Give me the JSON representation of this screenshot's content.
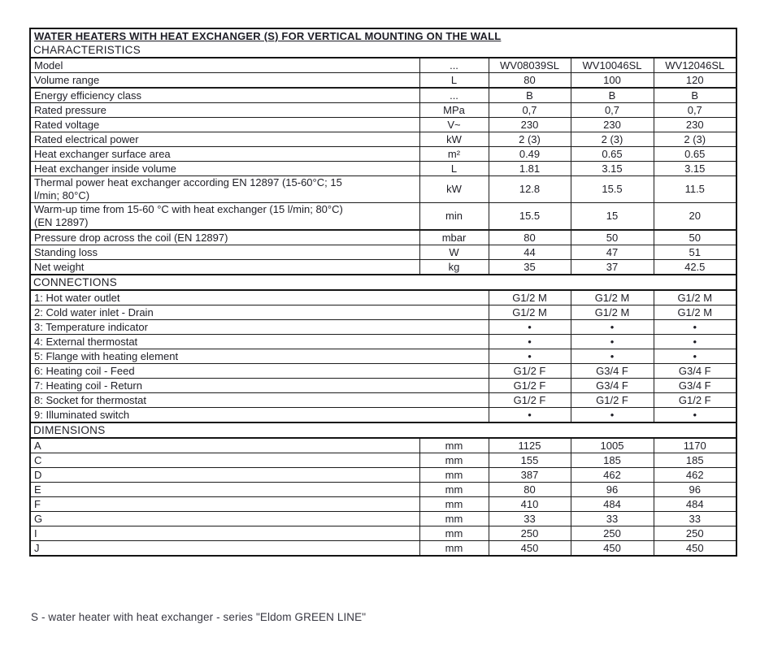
{
  "title": "WATER HEATERS WITH HEAT EXCHANGER (S) FOR VERTICAL MOUNTING ON THE WALL",
  "footer_note": "S - water heater with heat exchanger - series \"Eldom GREEN LINE\"",
  "colors": {
    "border": "#141414",
    "text": "#1e1e26",
    "background": "#ffffff"
  },
  "table": {
    "models": [
      "WV08039SL",
      "WV10046SL",
      "WV12046SL"
    ],
    "sections": [
      {
        "header": "CHARACTERISTICS",
        "rows": [
          {
            "label": "Model",
            "unit": "...",
            "values": [
              "WV08039SL",
              "WV10046SL",
              "WV12046SL"
            ]
          },
          {
            "label": "Volume range",
            "unit": "L",
            "values": [
              "80",
              "100",
              "120"
            ],
            "thick_bottom": true
          },
          {
            "label": "Energy efficiency class",
            "unit": "...",
            "values": [
              "B",
              "B",
              "B"
            ]
          },
          {
            "label": "Rated pressure",
            "unit": "MPa",
            "values": [
              "0,7",
              "0,7",
              "0,7"
            ]
          },
          {
            "label": "Rated voltage",
            "unit": "V~",
            "values": [
              "230",
              "230",
              "230"
            ]
          },
          {
            "label": "Rated electrical power",
            "unit": "kW",
            "values": [
              "2 (3)",
              "2 (3)",
              "2 (3)"
            ]
          },
          {
            "label": "Heat exchanger surface area",
            "unit": "m²",
            "values": [
              "0.49",
              "0.65",
              "0.65"
            ]
          },
          {
            "label": "Heat exchanger inside volume",
            "unit": "L",
            "values": [
              "1.81",
              "3.15",
              "3.15"
            ]
          },
          {
            "label": "Thermal power heat exchanger according EN 12897 (15-60°C; 15\nl/min; 80°C)",
            "unit": "kW",
            "values": [
              "12.8",
              "15.5",
              "11.5"
            ]
          },
          {
            "label": "Warm-up time from 15-60 °C with heat exchanger (15 l/min; 80°C)\n(EN 12897)",
            "unit": "min",
            "values": [
              "15.5",
              "15",
              "20"
            ],
            "thick_bottom": true
          },
          {
            "label": "Pressure drop across the coil (EN 12897)",
            "unit": "mbar",
            "values": [
              "80",
              "50",
              "50"
            ]
          },
          {
            "label": "Standing loss",
            "unit": "W",
            "values": [
              "44",
              "47",
              "51"
            ]
          },
          {
            "label": "Net weight",
            "unit": "kg",
            "values": [
              "35",
              "37",
              "42.5"
            ]
          }
        ]
      },
      {
        "header": "CONNECTIONS",
        "rows": [
          {
            "label": "1: Hot water outlet",
            "unit": null,
            "values": [
              "G1/2 M",
              "G1/2 M",
              "G1/2 M"
            ]
          },
          {
            "label": "2: Cold water inlet - Drain",
            "unit": null,
            "values": [
              "G1/2 M",
              "G1/2 M",
              "G1/2 M"
            ]
          },
          {
            "label": "3: Temperature indicator",
            "unit": null,
            "values": [
              "•",
              "•",
              "•"
            ]
          },
          {
            "label": "4: External thermostat",
            "unit": null,
            "values": [
              "•",
              "•",
              "•"
            ]
          },
          {
            "label": "5: Flange with heating element",
            "unit": null,
            "values": [
              "•",
              "•",
              "•"
            ]
          },
          {
            "label": "6: Heating coil - Feed",
            "unit": null,
            "values": [
              "G1/2 F",
              "G3/4 F",
              "G3/4 F"
            ]
          },
          {
            "label": "7: Heating coil - Return",
            "unit": null,
            "values": [
              "G1/2 F",
              "G3/4 F",
              "G3/4 F"
            ]
          },
          {
            "label": "8: Socket for thermostat",
            "unit": null,
            "values": [
              "G1/2 F",
              "G1/2 F",
              "G1/2 F"
            ]
          },
          {
            "label": "9: Illuminated switch",
            "unit": null,
            "values": [
              "•",
              "•",
              "•"
            ]
          }
        ]
      },
      {
        "header": "DIMENSIONS",
        "rows": [
          {
            "label": "A",
            "unit": "mm",
            "values": [
              "1125",
              "1005",
              "1170"
            ]
          },
          {
            "label": "C",
            "unit": "mm",
            "values": [
              "155",
              "185",
              "185"
            ]
          },
          {
            "label": "D",
            "unit": "mm",
            "values": [
              "387",
              "462",
              "462"
            ]
          },
          {
            "label": "E",
            "unit": "mm",
            "values": [
              "80",
              "96",
              "96"
            ]
          },
          {
            "label": "F",
            "unit": "mm",
            "values": [
              "410",
              "484",
              "484"
            ]
          },
          {
            "label": "G",
            "unit": "mm",
            "values": [
              "33",
              "33",
              "33"
            ]
          },
          {
            "label": "I",
            "unit": "mm",
            "values": [
              "250",
              "250",
              "250"
            ]
          },
          {
            "label": "J",
            "unit": "mm",
            "values": [
              "450",
              "450",
              "450"
            ]
          }
        ]
      }
    ]
  }
}
